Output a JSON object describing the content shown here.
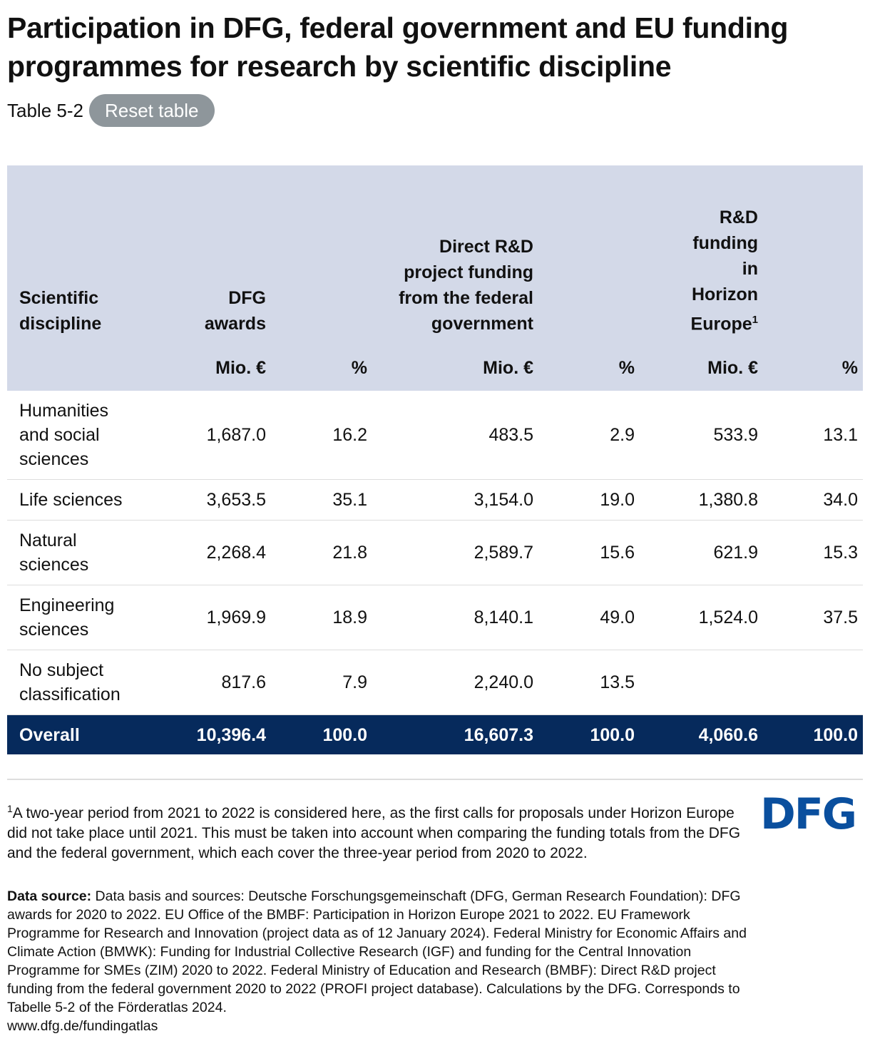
{
  "title": "Participation in DFG, federal government and EU funding programmes for research by scientific discipline",
  "table_label": "Table 5-2",
  "reset_label": "Reset table",
  "table": {
    "headers": [
      "Scientific discipline",
      "DFG awards",
      "Direct R&D project funding from the federal government",
      "R&D funding in Horizon Europe"
    ],
    "footnote_mark": "1",
    "units": [
      "Mio. €",
      "%",
      "Mio. €",
      "%",
      "Mio. €",
      "%"
    ],
    "rows": [
      [
        "Humanities and social sciences",
        "1,687.0",
        "16.2",
        "483.5",
        "2.9",
        "533.9",
        "13.1"
      ],
      [
        "Life sciences",
        "3,653.5",
        "35.1",
        "3,154.0",
        "19.0",
        "1,380.8",
        "34.0"
      ],
      [
        "Natural sciences",
        "2,268.4",
        "21.8",
        "2,589.7",
        "15.6",
        "621.9",
        "15.3"
      ],
      [
        "Engineering sciences",
        "1,969.9",
        "18.9",
        "8,140.1",
        "49.0",
        "1,524.0",
        "37.5"
      ],
      [
        "No subject classification",
        "817.6",
        "7.9",
        "2,240.0",
        "13.5",
        "",
        ""
      ]
    ],
    "total": [
      "Overall",
      "10,396.4",
      "100.0",
      "16,607.3",
      "100.0",
      "4,060.6",
      "100.0"
    ]
  },
  "footnote": {
    "mark": "1",
    "text": "A two-year period from 2021 to 2022 is considered here, as the first calls for proposals under Horizon Europe did not take place until 2021. This must be taken into account when comparing the funding totals from the DFG and the federal government, which each cover the three-year period from 2020 to 2022."
  },
  "source": {
    "label": "Data source:",
    "text": " Data basis and sources: Deutsche Forschungsgemeinschaft (DFG, German Research Foundation): DFG awards for 2020 to 2022. EU Office of the BMBF: Participation in Horizon Europe 2021 to 2022. EU Framework Programme for Research and Innovation (project data as of 12 January 2024). Federal Ministry for Economic Affairs and Climate Action (BMWK): Funding for Industrial Collective Research (IGF) and funding for the Central Innovation Programme for SMEs (ZIM) 2020 to 2022. Federal Ministry of Education and Research (BMBF): Direct R&D project funding from the federal government 2020 to 2022 (PROFI project database). Calculations by the DFG. Corresponds to Tabelle 5-2 of the Förderatlas 2024.",
    "url": "www.dfg.de/fundingatlas"
  },
  "logo": "DFG"
}
